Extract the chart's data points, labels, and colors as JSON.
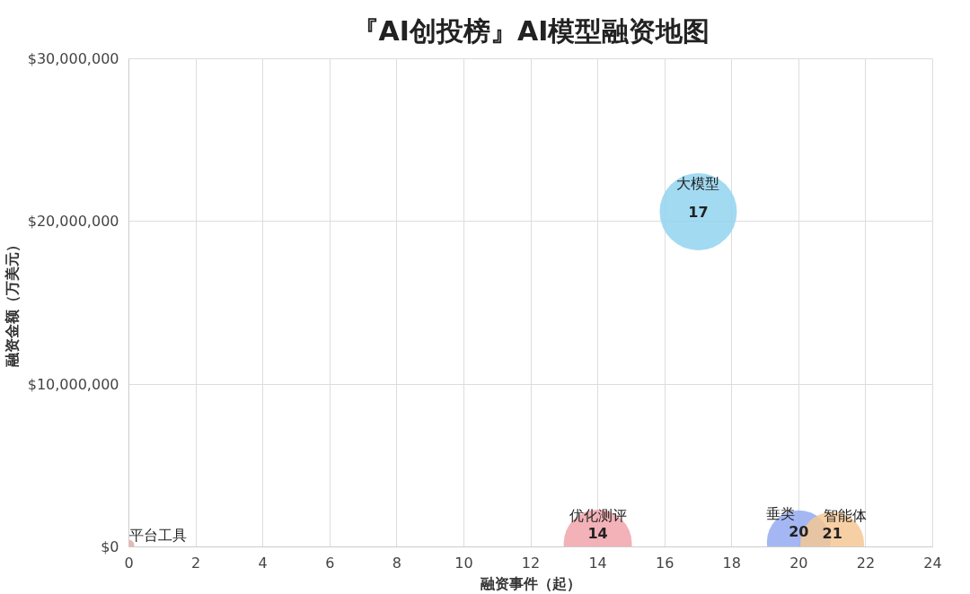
{
  "chart_data": {
    "type": "bubble",
    "title": "『AI创投榜』AI模型融资地图",
    "xlabel": "融资事件（起）",
    "ylabel": "融资金额（万美元）",
    "xlim": [
      0,
      24
    ],
    "xticks": [
      0,
      2,
      4,
      6,
      8,
      10,
      12,
      14,
      16,
      18,
      20,
      22,
      24
    ],
    "ylim": [
      0,
      30000000
    ],
    "yticks": [
      {
        "value": 0,
        "label": "$0"
      },
      {
        "value": 10000000,
        "label": "$10,000,000"
      },
      {
        "value": 20000000,
        "label": "$20,000,000"
      },
      {
        "value": 30000000,
        "label": "$30,000,000"
      }
    ],
    "grid": true,
    "series": [
      {
        "name": "平台工具",
        "color": "#e8a8a8",
        "x": [
          0
        ],
        "values": [
          100000
        ],
        "sizes": [
          0.02
        ]
      },
      {
        "name": "优化测评",
        "color": "#f0a4ac",
        "x": [
          14
        ],
        "values": [
          200000
        ],
        "sizes": [
          0.78
        ]
      },
      {
        "name": "大模型",
        "color": "#92d4f0",
        "x": [
          17
        ],
        "values": [
          20600000
        ],
        "sizes": [
          1
        ]
      },
      {
        "name": "垂类",
        "color": "#94aaf0",
        "x": [
          20
        ],
        "values": [
          300000
        ],
        "sizes": [
          0.68
        ]
      },
      {
        "name": "智能体",
        "color": "#f4c894",
        "x": [
          21
        ],
        "values": [
          200000
        ],
        "sizes": [
          0.68
        ]
      }
    ],
    "annotations": [
      {
        "text": "14",
        "x": 14,
        "y": 200000
      },
      {
        "text": "17",
        "x": 17,
        "y": 20600000
      },
      {
        "text": "20",
        "x": 20,
        "y": 300000
      },
      {
        "text": "21",
        "x": 21,
        "y": 200000
      }
    ]
  }
}
